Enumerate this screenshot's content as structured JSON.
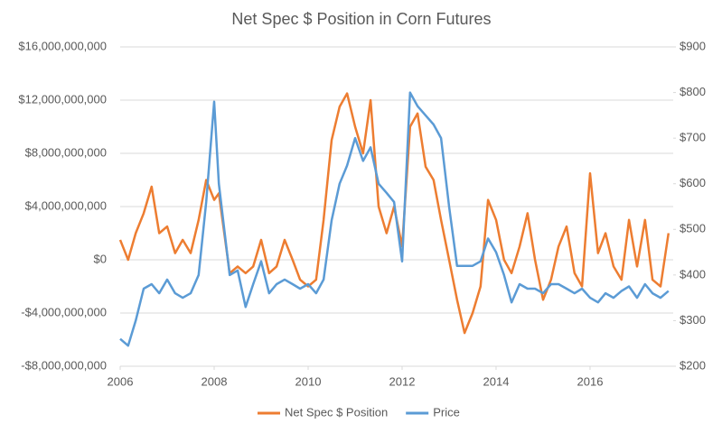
{
  "chart_data": {
    "type": "line",
    "title": "Net Spec $ Position in Corn Futures",
    "x": [
      2006.0,
      2006.17,
      2006.33,
      2006.5,
      2006.67,
      2006.83,
      2007.0,
      2007.17,
      2007.33,
      2007.5,
      2007.67,
      2007.83,
      2008.0,
      2008.1,
      2008.33,
      2008.5,
      2008.67,
      2008.83,
      2009.0,
      2009.17,
      2009.33,
      2009.5,
      2009.67,
      2009.83,
      2010.0,
      2010.17,
      2010.33,
      2010.5,
      2010.67,
      2010.83,
      2011.0,
      2011.17,
      2011.33,
      2011.5,
      2011.67,
      2011.83,
      2012.0,
      2012.17,
      2012.33,
      2012.5,
      2012.67,
      2012.83,
      2013.0,
      2013.17,
      2013.33,
      2013.5,
      2013.67,
      2013.83,
      2014.0,
      2014.17,
      2014.33,
      2014.5,
      2014.67,
      2014.83,
      2015.0,
      2015.17,
      2015.33,
      2015.5,
      2015.67,
      2015.83,
      2016.0,
      2016.17,
      2016.33,
      2016.5,
      2016.67,
      2016.83,
      2017.0,
      2017.17,
      2017.33,
      2017.5,
      2017.67
    ],
    "series": [
      {
        "name": "Net Spec $ Position",
        "color": "#ED7D31",
        "axis": "y",
        "values": [
          1500000000,
          0,
          2000000000,
          3500000000,
          5500000000,
          2000000000,
          2500000000,
          500000000,
          1500000000,
          500000000,
          3000000000,
          6000000000,
          4500000000,
          5000000000,
          -1000000000,
          -500000000,
          -1000000000,
          -500000000,
          1500000000,
          -1000000000,
          -500000000,
          1500000000,
          0,
          -1500000000,
          -2000000000,
          -1500000000,
          3000000000,
          9000000000,
          11500000000,
          12500000000,
          10000000000,
          8000000000,
          12000000000,
          4000000000,
          2000000000,
          4000000000,
          1000000000,
          10000000000,
          11000000000,
          7000000000,
          6000000000,
          3000000000,
          0,
          -3000000000,
          -5500000000,
          -4000000000,
          -2000000000,
          4500000000,
          3000000000,
          0,
          -1000000000,
          1000000000,
          3500000000,
          0,
          -3000000000,
          -1500000000,
          1000000000,
          2500000000,
          -1000000000,
          -2000000000,
          6500000000,
          500000000,
          2000000000,
          -500000000,
          -1500000000,
          3000000000,
          -500000000,
          3000000000,
          -1500000000,
          -2000000000,
          2000000000
        ]
      },
      {
        "name": "Price",
        "color": "#5B9BD5",
        "axis": "y2",
        "values": [
          260,
          245,
          300,
          370,
          380,
          360,
          390,
          360,
          350,
          360,
          400,
          560,
          780,
          600,
          400,
          410,
          330,
          380,
          430,
          360,
          380,
          390,
          380,
          370,
          380,
          360,
          390,
          520,
          600,
          640,
          700,
          650,
          680,
          600,
          580,
          560,
          430,
          800,
          770,
          750,
          730,
          700,
          550,
          420,
          420,
          420,
          430,
          480,
          450,
          400,
          340,
          380,
          370,
          370,
          360,
          380,
          380,
          370,
          360,
          370,
          350,
          340,
          360,
          350,
          365,
          375,
          350,
          380,
          360,
          350,
          365
        ]
      }
    ],
    "xlim": [
      2006,
      2017.77
    ],
    "xticks": [
      2006,
      2008,
      2010,
      2012,
      2014,
      2016
    ],
    "ylim": [
      -8000000000,
      16000000000
    ],
    "yticks": [
      {
        "value": -8000000000,
        "label": "-$8,000,000,000"
      },
      {
        "value": -4000000000,
        "label": "-$4,000,000,000"
      },
      {
        "value": 0,
        "label": "$0"
      },
      {
        "value": 4000000000,
        "label": "$4,000,000,000"
      },
      {
        "value": 8000000000,
        "label": "$8,000,000,000"
      },
      {
        "value": 12000000000,
        "label": "$12,000,000,000"
      },
      {
        "value": 16000000000,
        "label": "$16,000,000,000"
      }
    ],
    "y2lim": [
      200,
      900
    ],
    "y2ticks": [
      {
        "value": 200,
        "label": "$200"
      },
      {
        "value": 300,
        "label": "$300"
      },
      {
        "value": 400,
        "label": "$400"
      },
      {
        "value": 500,
        "label": "$500"
      },
      {
        "value": 600,
        "label": "$600"
      },
      {
        "value": 700,
        "label": "$700"
      },
      {
        "value": 800,
        "label": "$800"
      },
      {
        "value": 900,
        "label": "$900"
      }
    ],
    "grid": true,
    "legend": "bottom"
  }
}
